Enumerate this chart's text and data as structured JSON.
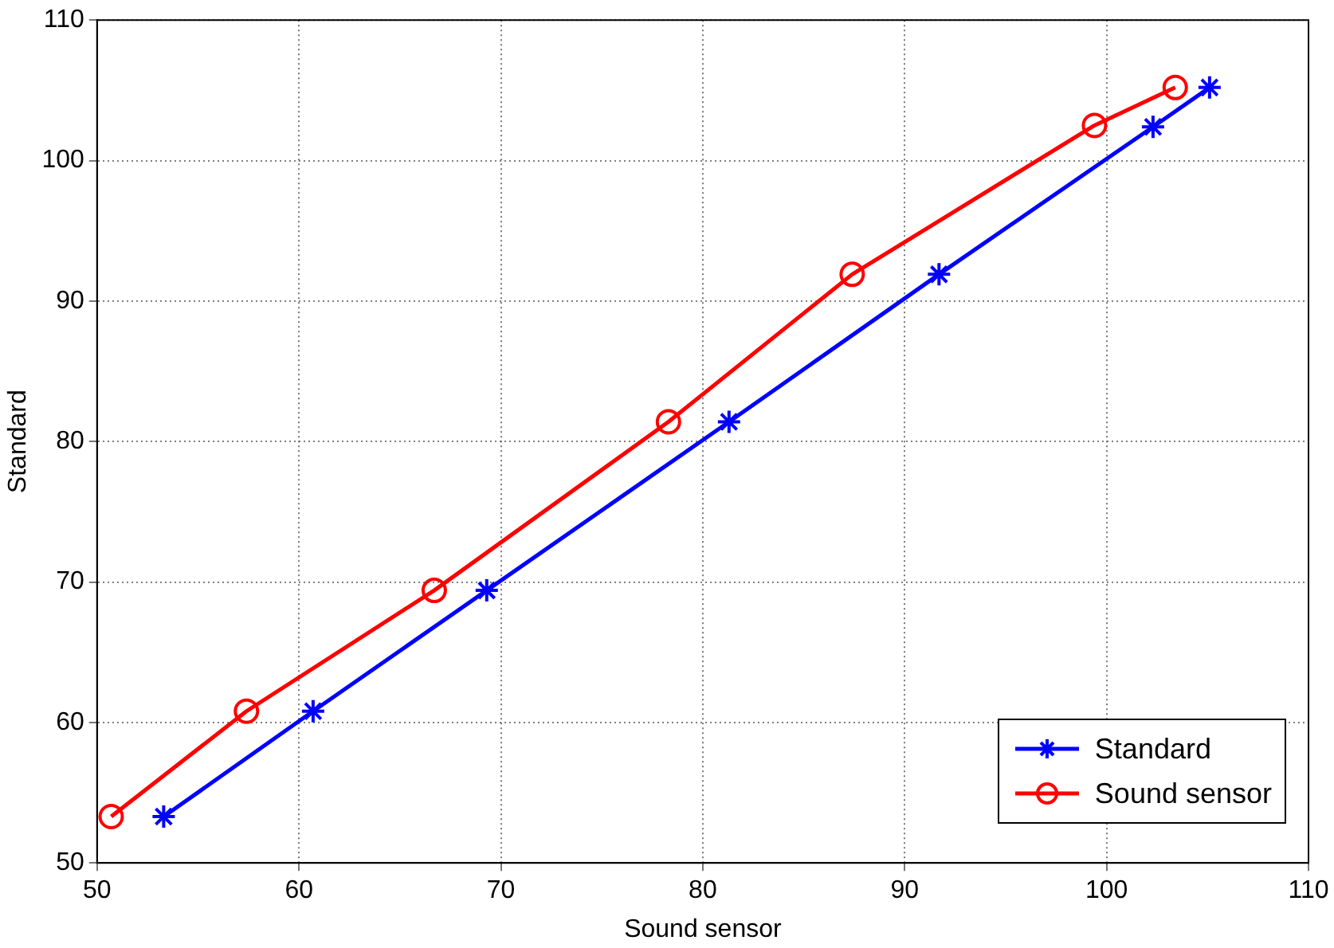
{
  "chart_data": {
    "type": "line",
    "xlabel": "Sound sensor",
    "ylabel": "Standard",
    "xlim": [
      50,
      110
    ],
    "xticks": [
      50,
      60,
      70,
      80,
      90,
      100,
      110
    ],
    "ylim": [
      50,
      110
    ],
    "yticks": [
      50,
      60,
      70,
      80,
      90,
      100,
      110
    ],
    "grid": true,
    "legend": "bottom right",
    "line_style": "solid",
    "series": [
      {
        "name": "Standard",
        "color": "#0000ff",
        "marker": "cross",
        "x": [
          53.3,
          60.7,
          69.3,
          81.3,
          91.7,
          102.3,
          105.1
        ],
        "values": [
          53.3,
          60.8,
          69.4,
          81.4,
          91.9,
          102.4,
          105.2
        ]
      },
      {
        "name": "Sound sensor",
        "color": "#ff0000",
        "marker": "circle",
        "x": [
          50.7,
          57.4,
          66.7,
          78.3,
          87.4,
          99.4,
          103.4
        ],
        "values": [
          53.3,
          60.8,
          69.4,
          81.4,
          91.9,
          102.5,
          105.2
        ]
      }
    ]
  }
}
